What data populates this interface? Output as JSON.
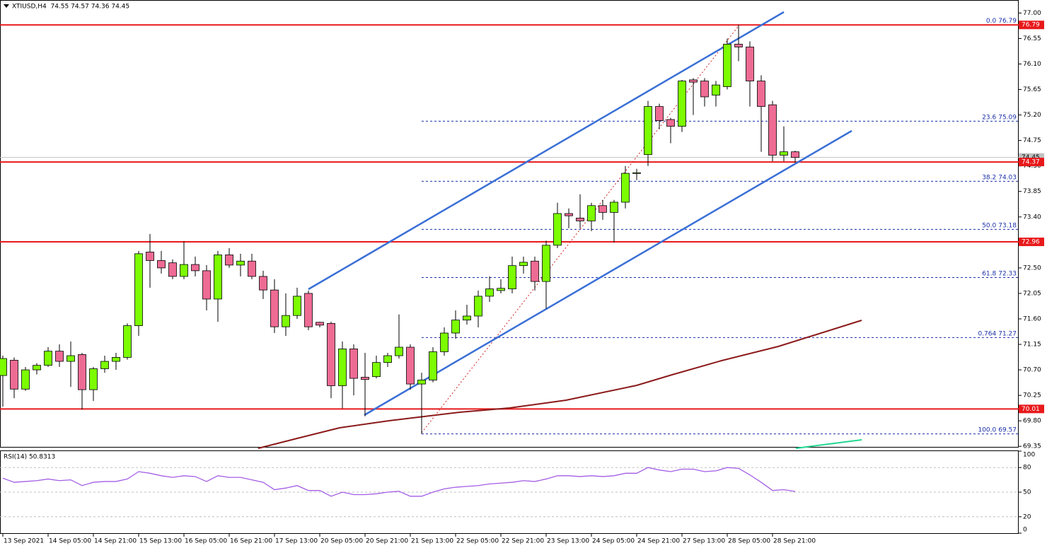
{
  "chart_data": [
    {
      "type": "candlestick",
      "title": "XTIUSD,H4  74.55 74.57 74.36 74.45",
      "categories": [
        "13 Sep 2021",
        null,
        null,
        null,
        "14 Sep 05:00",
        null,
        null,
        null,
        "14 Sep 21:00",
        null,
        null,
        null,
        "15 Sep 13:00",
        null,
        null,
        null,
        "16 Sep 05:00",
        null,
        null,
        null,
        "16 Sep 21:00",
        null,
        null,
        null,
        "17 Sep 13:00",
        null,
        null,
        null,
        "20 Sep 05:00",
        null,
        null,
        null,
        "20 Sep 21:00",
        null,
        null,
        null,
        "21 Sep 13:00",
        null,
        null,
        null,
        "22 Sep 05:00",
        null,
        null,
        null,
        "22 Sep 21:00",
        null,
        null,
        null,
        "23 Sep 13:00",
        null,
        null,
        null,
        "24 Sep 05:00",
        null,
        null,
        null,
        "24 Sep 21:00",
        null,
        null,
        null,
        "27 Sep 13:00",
        null,
        null,
        null,
        "28 Sep 05:00",
        null,
        null,
        null,
        "28 Sep 21:00",
        null,
        null
      ],
      "open": [
        70.6,
        70.87,
        70.36,
        70.7,
        70.78,
        71.03,
        70.85,
        70.97,
        70.35,
        70.72,
        70.85,
        70.92,
        71.48,
        72.78,
        72.63,
        72.59,
        72.35,
        72.56,
        72.45,
        71.95,
        72.73,
        72.55,
        72.62,
        72.35,
        72.11,
        71.46,
        71.66,
        72.05,
        71.54,
        71.52,
        70.42,
        71.07,
        70.57,
        70.58,
        70.83,
        70.95,
        71.1,
        70.45,
        70.52,
        71.02,
        71.35,
        71.58,
        71.65,
        72.0,
        72.1,
        72.13,
        72.54,
        72.62,
        72.26,
        72.9,
        73.46,
        73.38,
        73.33,
        73.6,
        73.48,
        73.66,
        74.17,
        74.5,
        75.35,
        75.12,
        75.0,
        75.82,
        75.8,
        75.55,
        75.7,
        76.45,
        76.4,
        75.8,
        75.38,
        74.49,
        74.55
      ],
      "high": [
        70.95,
        70.92,
        70.75,
        70.82,
        71.1,
        71.15,
        71.2,
        71.0,
        70.75,
        70.95,
        71.0,
        71.52,
        72.8,
        73.1,
        72.8,
        72.65,
        72.97,
        72.7,
        72.55,
        72.8,
        72.85,
        72.75,
        72.75,
        72.45,
        72.3,
        72.05,
        72.15,
        72.1,
        71.55,
        71.55,
        71.2,
        71.15,
        71.0,
        70.95,
        71.0,
        71.68,
        71.15,
        70.65,
        71.1,
        71.45,
        71.75,
        71.85,
        72.1,
        72.35,
        72.3,
        72.7,
        72.7,
        72.7,
        72.98,
        73.65,
        73.55,
        73.8,
        73.65,
        73.7,
        73.7,
        74.3,
        74.25,
        75.45,
        75.4,
        75.15,
        75.82,
        75.85,
        75.85,
        75.8,
        76.55,
        76.79,
        76.5,
        75.9,
        75.45,
        75.0,
        74.57
      ],
      "low": [
        70.05,
        70.2,
        70.33,
        70.62,
        70.75,
        70.75,
        70.4,
        70.0,
        70.15,
        70.65,
        70.7,
        70.88,
        71.3,
        72.15,
        72.4,
        72.3,
        72.3,
        72.35,
        71.75,
        71.55,
        72.5,
        72.35,
        72.3,
        71.95,
        71.35,
        71.3,
        71.6,
        71.4,
        71.45,
        70.2,
        70.02,
        70.25,
        69.88,
        70.55,
        70.75,
        70.9,
        70.35,
        69.57,
        70.48,
        70.95,
        71.25,
        71.5,
        71.45,
        71.9,
        72.05,
        72.05,
        72.4,
        72.1,
        71.78,
        72.85,
        73.2,
        73.2,
        73.15,
        73.35,
        72.95,
        73.55,
        74.05,
        74.3,
        74.95,
        74.7,
        74.9,
        75.2,
        75.35,
        75.35,
        75.65,
        76.15,
        75.35,
        74.55,
        74.38,
        74.38,
        74.36
      ],
      "close": [
        70.9,
        70.36,
        70.7,
        70.78,
        71.03,
        70.85,
        70.95,
        70.35,
        70.72,
        70.85,
        70.92,
        71.48,
        72.75,
        72.63,
        72.5,
        72.35,
        72.56,
        72.45,
        71.95,
        72.73,
        72.55,
        72.62,
        72.35,
        72.11,
        71.46,
        71.66,
        72.0,
        71.46,
        71.49,
        70.42,
        71.07,
        70.55,
        70.53,
        70.83,
        70.95,
        71.1,
        70.45,
        70.52,
        71.02,
        71.35,
        71.58,
        71.65,
        72.0,
        72.13,
        72.14,
        72.54,
        72.6,
        72.26,
        72.9,
        73.46,
        73.42,
        73.33,
        73.6,
        73.48,
        73.66,
        74.17,
        74.18,
        75.35,
        75.1,
        75.0,
        75.8,
        75.78,
        75.52,
        75.73,
        76.45,
        76.4,
        75.8,
        75.35,
        74.49,
        74.55,
        74.45
      ],
      "up_color": "#7cfc00",
      "down_color": "#ee6b94",
      "ylim": [
        69.34,
        77.23
      ],
      "yticks": [
        {
          "value": 77,
          "label": "77.00"
        },
        76.55,
        {
          "value": 76.1,
          "label": "76.10"
        },
        75.65,
        {
          "value": 75.2,
          "label": "75.20"
        },
        74.75,
        {
          "value": 74.3,
          "label": "74.30"
        },
        73.85,
        {
          "value": 73.4,
          "label": "73.40"
        },
        72.95,
        {
          "value": 72.5,
          "label": "72.50"
        },
        72.05,
        {
          "value": 71.6,
          "label": "71.60"
        },
        71.15,
        {
          "value": 70.7,
          "label": "70.70"
        },
        70.25,
        {
          "value": 69.8,
          "label": "69.80"
        },
        69.35
      ],
      "levels": [
        76.79,
        74.37,
        72.96,
        70.01
      ],
      "level_color": "#e8191b",
      "last_price": 74.45,
      "fib_levels": [
        {
          "ratio": "0.0",
          "value": 76.79
        },
        {
          "ratio": "23.6",
          "value": 75.09
        },
        {
          "ratio": "38.2",
          "value": 74.03
        },
        {
          "ratio": "50.0",
          "value": 73.18
        },
        {
          "ratio": "61.8",
          "value": 72.33
        },
        {
          "ratio": "0.764",
          "value": 71.27
        },
        {
          "ratio": "100.0",
          "value": 69.57
        }
      ],
      "fib_color": "#1a2fa8"
    },
    {
      "type": "line",
      "title": "RSI(14) 50.8313",
      "values": [
        67,
        62,
        63,
        64,
        66,
        64,
        65,
        58,
        62,
        63,
        63,
        66,
        75,
        73,
        70,
        68,
        70,
        69,
        63,
        70,
        68,
        68,
        65,
        62,
        53,
        55,
        58,
        52,
        52,
        45,
        50,
        47,
        47,
        48,
        50,
        51,
        45,
        45,
        50,
        54,
        56,
        57,
        58,
        60,
        61,
        62,
        64,
        63,
        66,
        70,
        70,
        69,
        70,
        69,
        70,
        73,
        73,
        80,
        77,
        75,
        78,
        78,
        75,
        76,
        80,
        79,
        71,
        62,
        52,
        53,
        50.8313
      ],
      "color": "#a45ee5",
      "ylim": [
        0,
        100
      ],
      "yticks": [
        100,
        80,
        50,
        20,
        0
      ],
      "grid": true
    }
  ]
}
